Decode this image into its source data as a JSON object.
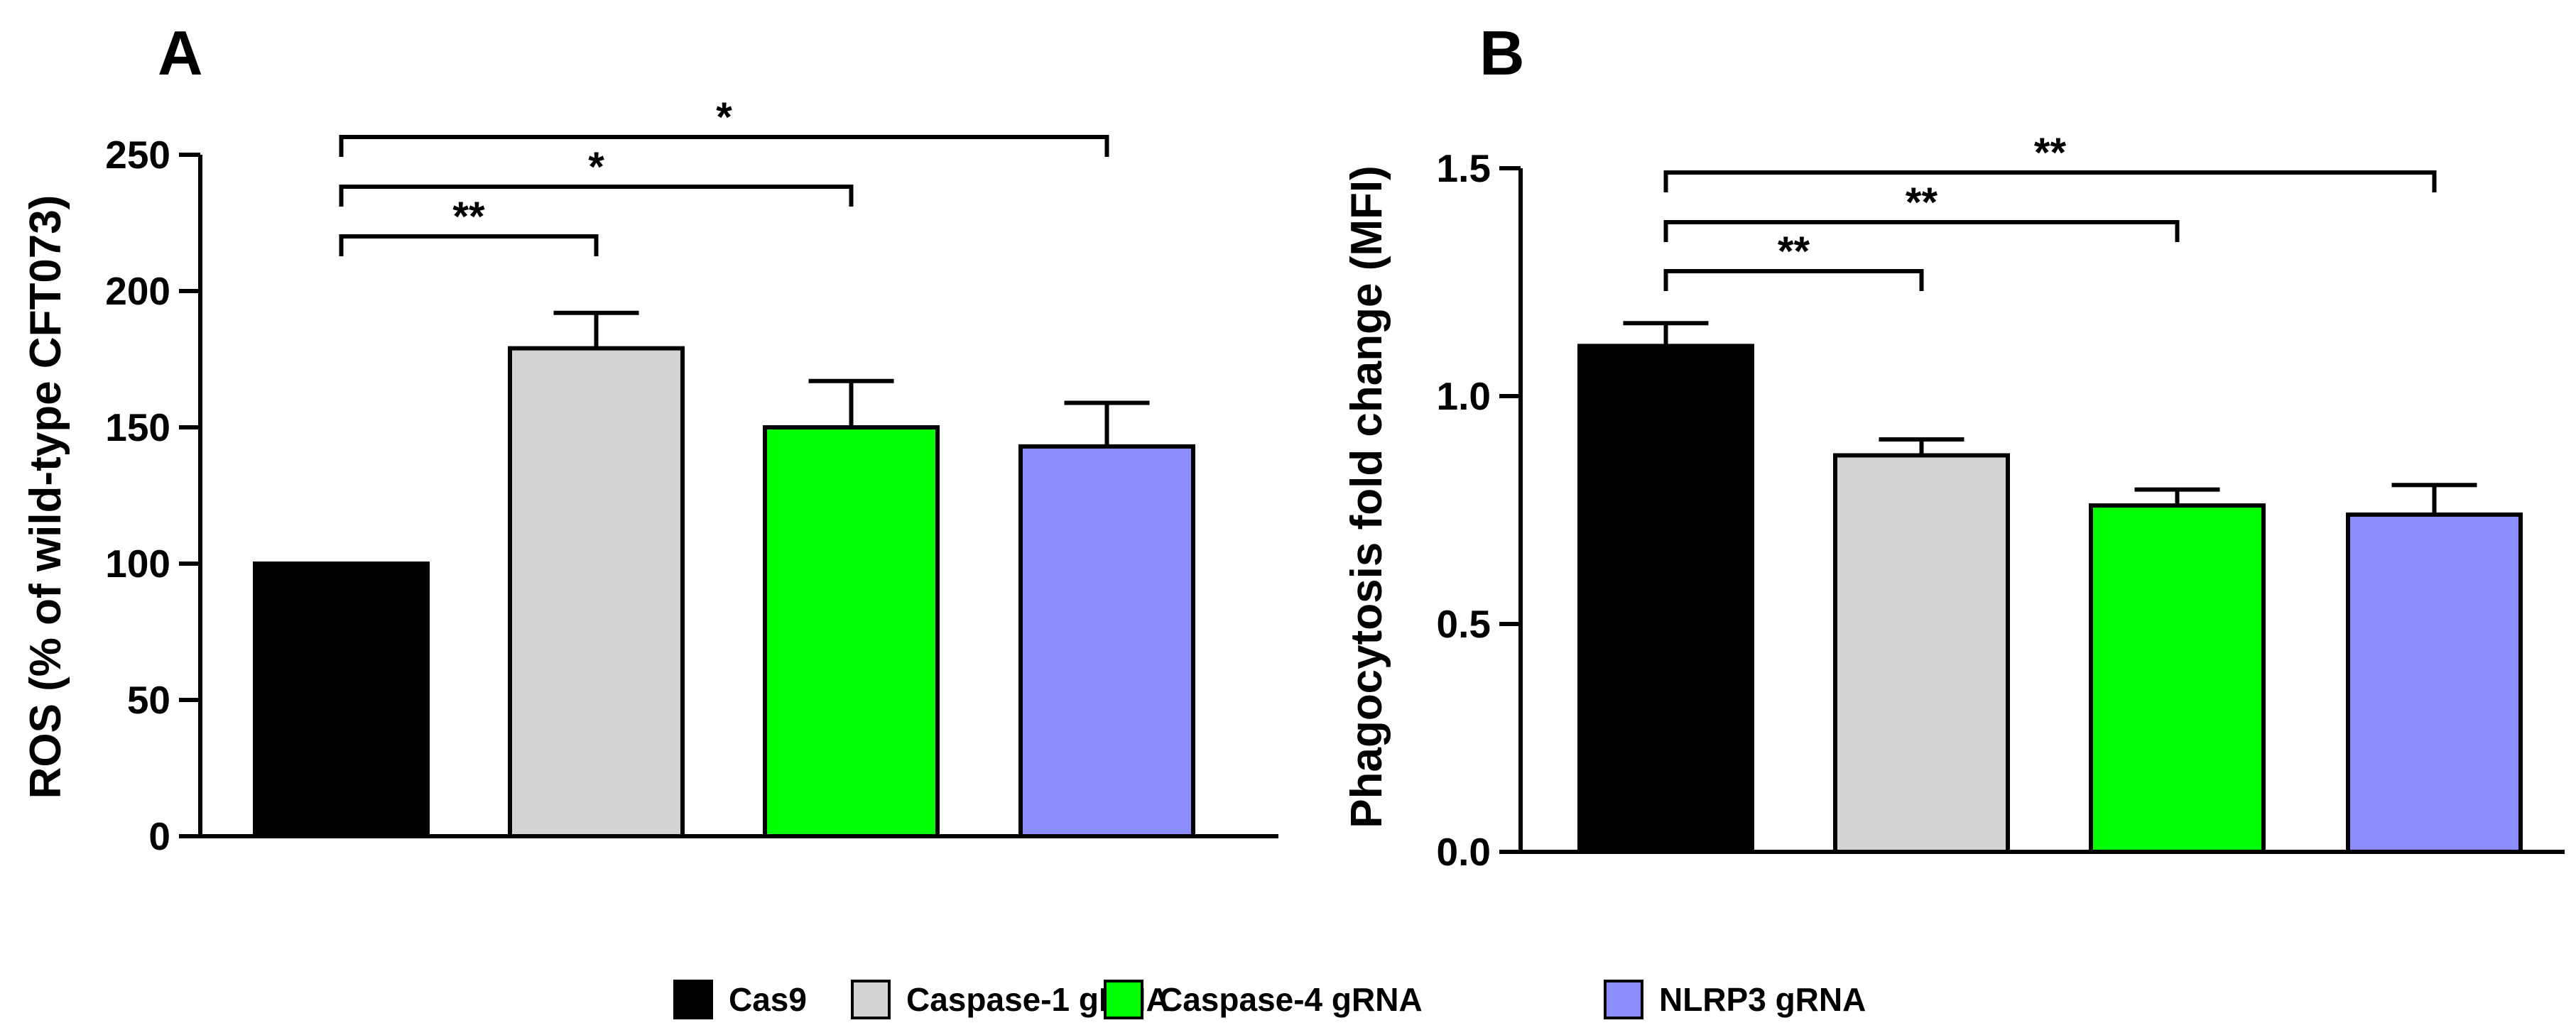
{
  "legend": [
    {
      "label": "Cas9",
      "color": "#000000"
    },
    {
      "label": "Caspase-1 gRNA",
      "color": "#d3d3d3"
    },
    {
      "label": "Caspase-4 gRNA",
      "color": "#00ff00"
    },
    {
      "label": "NLRP3 gRNA",
      "color": "#8c8cff"
    }
  ],
  "chart_data": [
    {
      "panel": "A",
      "type": "bar",
      "ylabel": "ROS (% of wild-type CFT073)",
      "xlabel": "",
      "categories": [
        "Cas9",
        "Caspase-1 gRNA",
        "Caspase-4 gRNA",
        "NLRP3 gRNA"
      ],
      "values": [
        100,
        179,
        150,
        143
      ],
      "errors": [
        0,
        13,
        17,
        16
      ],
      "colors": [
        "#000000",
        "#d3d3d3",
        "#00ff00",
        "#8c8cff"
      ],
      "ylim": [
        0,
        250
      ],
      "yticks": [
        0,
        50,
        100,
        150,
        200,
        250
      ],
      "ytick_labels": [
        "0",
        "50",
        "100",
        "150",
        "200",
        "250"
      ],
      "significance": [
        {
          "from": 0,
          "to": 1,
          "label": "**"
        },
        {
          "from": 0,
          "to": 2,
          "label": "*"
        },
        {
          "from": 0,
          "to": 3,
          "label": "*"
        }
      ]
    },
    {
      "panel": "B",
      "type": "bar",
      "ylabel": "Phagocytosis fold change (MFI)",
      "xlabel": "",
      "categories": [
        "Cas9",
        "Caspase-1 gRNA",
        "Caspase-4 gRNA",
        "NLRP3 gRNA"
      ],
      "values": [
        1.11,
        0.87,
        0.76,
        0.74
      ],
      "errors": [
        0.05,
        0.035,
        0.035,
        0.065
      ],
      "colors": [
        "#000000",
        "#d3d3d3",
        "#00ff00",
        "#8c8cff"
      ],
      "ylim": [
        0,
        1.5
      ],
      "yticks": [
        0,
        0.5,
        1.0,
        1.5
      ],
      "ytick_labels": [
        "0.0",
        "0.5",
        "1.0",
        "1.5"
      ],
      "significance": [
        {
          "from": 0,
          "to": 1,
          "label": "**"
        },
        {
          "from": 0,
          "to": 2,
          "label": "**"
        },
        {
          "from": 0,
          "to": 3,
          "label": "**"
        }
      ]
    }
  ]
}
